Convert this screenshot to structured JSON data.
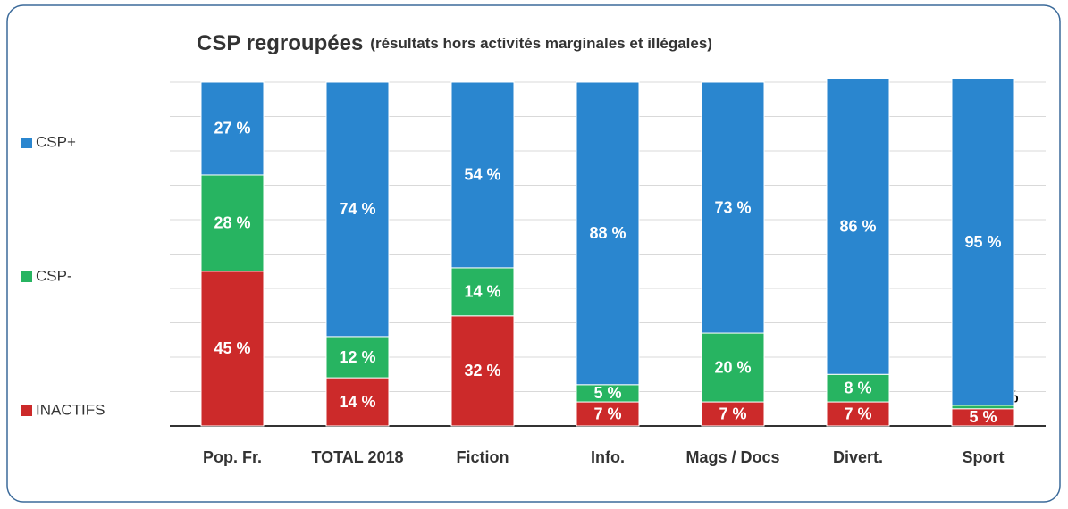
{
  "chart_data": {
    "type": "stacked_bar",
    "title": "CSP regroupées",
    "subtitle": "(résultats hors activités marginales et illégales)",
    "categories": [
      "Pop. Fr.",
      "TOTAL 2018",
      "Fiction",
      "Info.",
      "Mags / Docs",
      "Divert.",
      "Sport"
    ],
    "series": [
      {
        "name": "INACTIFS",
        "color": "#cc2a2a",
        "values": [
          45,
          14,
          32,
          7,
          7,
          7,
          5
        ],
        "value_labels": [
          "45 %",
          "14 %",
          "32 %",
          "7 %",
          "7 %",
          "7 %",
          "5 %"
        ]
      },
      {
        "name": "CSP-",
        "color": "#27b461",
        "values": [
          28,
          12,
          14,
          5,
          20,
          8,
          1
        ],
        "value_labels": [
          "28 %",
          "12 %",
          "14 %",
          "5 %",
          "20 %",
          "8 %",
          "1 %"
        ]
      },
      {
        "name": "CSP+",
        "color": "#2a86cf",
        "values": [
          27,
          74,
          54,
          88,
          73,
          86,
          95
        ],
        "value_labels": [
          "27 %",
          "74 %",
          "54 %",
          "88 %",
          "73 %",
          "86 %",
          "95 %"
        ]
      }
    ],
    "ylim": [
      0,
      100
    ],
    "yticks": [
      0,
      10,
      20,
      30,
      40,
      50,
      60,
      70,
      80,
      90,
      100
    ],
    "grid": true
  }
}
